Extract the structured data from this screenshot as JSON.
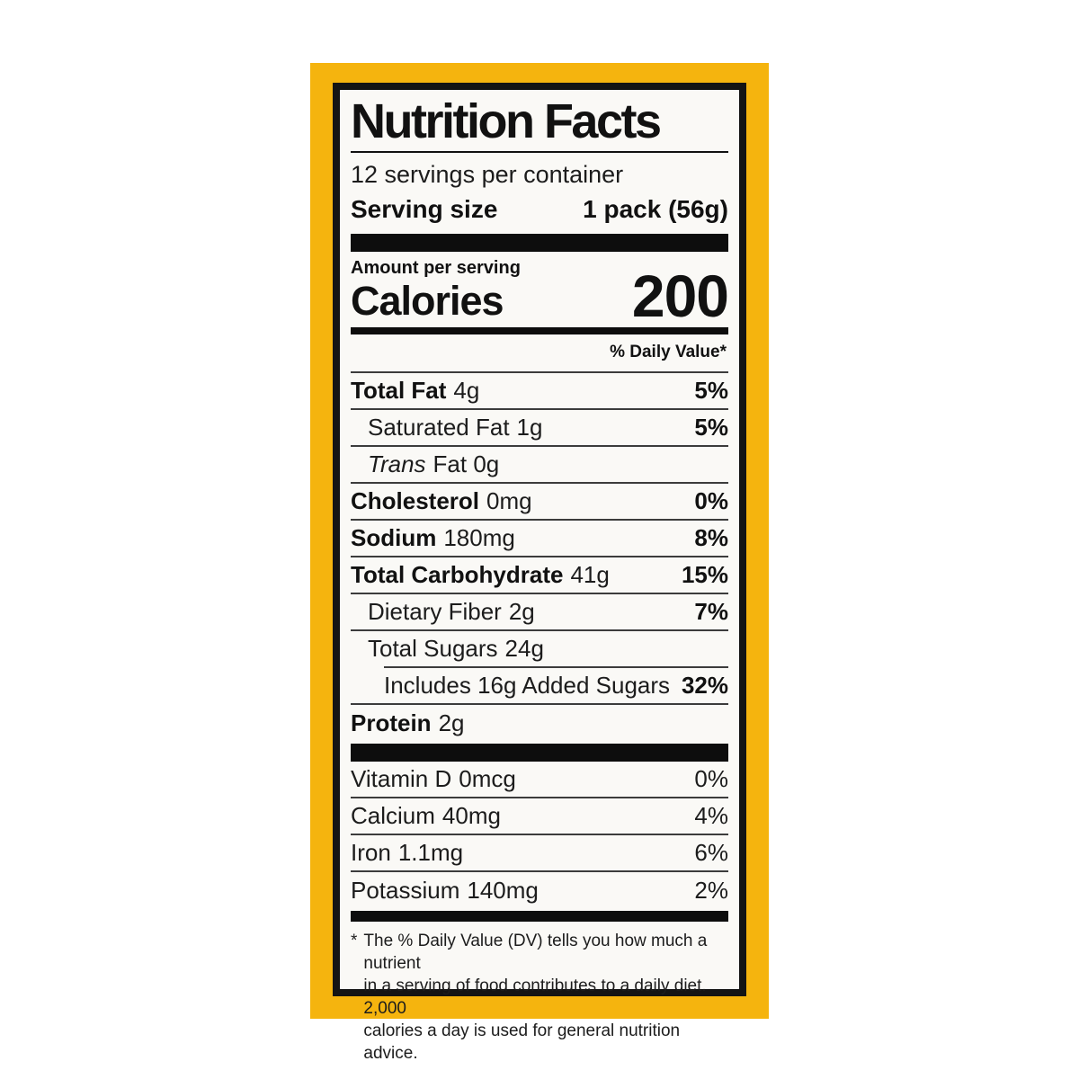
{
  "label": {
    "title": "Nutrition Facts",
    "servings_per_container": "12 servings per container",
    "serving_size_label": "Serving size",
    "serving_size_value": "1 pack (56g)",
    "amount_per_serving": "Amount per serving",
    "calories_label": "Calories",
    "calories_value": "200",
    "daily_value_header": "% Daily Value*",
    "nutrients": [
      {
        "name": "Total Fat",
        "amount": "4g",
        "dv": "5%"
      },
      {
        "name": "Saturated Fat",
        "amount": "1g",
        "dv": "5%"
      },
      {
        "name": "Trans",
        "amount": "Fat 0g",
        "dv": ""
      },
      {
        "name": "Cholesterol",
        "amount": "0mg",
        "dv": "0%"
      },
      {
        "name": "Sodium",
        "amount": "180mg",
        "dv": "8%"
      },
      {
        "name": "Total Carbohydrate",
        "amount": "41g",
        "dv": "15%"
      },
      {
        "name": "Dietary Fiber",
        "amount": "2g",
        "dv": "7%"
      },
      {
        "name": "Total Sugars",
        "amount": "24g",
        "dv": ""
      },
      {
        "name": "Includes 16g Added Sugars",
        "amount": "",
        "dv": "32%"
      },
      {
        "name": "Protein",
        "amount": "2g",
        "dv": ""
      }
    ],
    "micronutrients": [
      {
        "name": "Vitamin D",
        "amount": "0mcg",
        "dv": "0%"
      },
      {
        "name": "Calcium",
        "amount": "40mg",
        "dv": "4%"
      },
      {
        "name": "Iron",
        "amount": "1.1mg",
        "dv": "6%"
      },
      {
        "name": "Potassium",
        "amount": "140mg",
        "dv": "2%"
      }
    ],
    "footnote_star": "*",
    "footnote_text": "The % Daily Value (DV) tells you how much a nutrient\nin a serving of food contributes to a daily diet. 2,000\ncalories a day is used for general nutrition advice."
  },
  "colors": {
    "panel_yellow": "#F5B40E",
    "label_background": "#FAF9F6",
    "ink_black": "#111111"
  }
}
